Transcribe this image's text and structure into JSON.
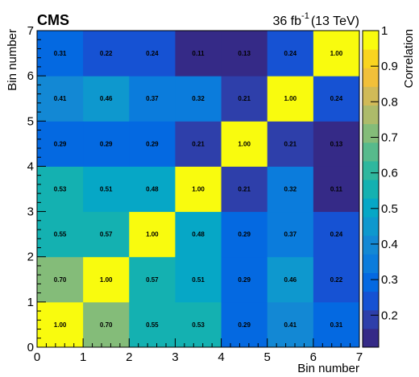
{
  "chart_data": {
    "type": "heatmap",
    "experiment_label": "CMS",
    "luminosity_label": "36 fb",
    "luminosity_exponent": "-1",
    "energy_label": "(13 TeV)",
    "xlabel": "Bin number",
    "ylabel": "Bin number",
    "colorbar_label": "Correlation",
    "x_ticks": [
      "0",
      "1",
      "2",
      "3",
      "4",
      "5",
      "6",
      "7"
    ],
    "y_ticks": [
      "0",
      "1",
      "2",
      "3",
      "4",
      "5",
      "6",
      "7"
    ],
    "xlim": [
      0,
      7
    ],
    "ylim": [
      0,
      7
    ],
    "zlim": [
      0.11,
      1.0
    ],
    "colorbar_ticks": [
      "0.2",
      "0.3",
      "0.4",
      "0.5",
      "0.6",
      "0.7",
      "0.8",
      "0.9",
      "1"
    ],
    "colorbar_tick_values": [
      0.2,
      0.3,
      0.4,
      0.5,
      0.6,
      0.7,
      0.8,
      0.9,
      1.0
    ],
    "cells": [
      [
        "1.00",
        "0.70",
        "0.55",
        "0.53",
        "0.29",
        "0.41",
        "0.31"
      ],
      [
        "0.70",
        "1.00",
        "0.57",
        "0.51",
        "0.29",
        "0.46",
        "0.22"
      ],
      [
        "0.55",
        "0.57",
        "1.00",
        "0.48",
        "0.29",
        "0.37",
        "0.24"
      ],
      [
        "0.53",
        "0.51",
        "0.48",
        "1.00",
        "0.21",
        "0.32",
        "0.11"
      ],
      [
        "0.29",
        "0.29",
        "0.29",
        "0.21",
        "1.00",
        "0.21",
        "0.13"
      ],
      [
        "0.41",
        "0.46",
        "0.37",
        "0.32",
        "0.21",
        "1.00",
        "0.24"
      ],
      [
        "0.31",
        "0.22",
        "0.24",
        "0.11",
        "0.13",
        "0.24",
        "1.00"
      ]
    ],
    "palette": [
      "#352A87",
      "#2E3FAA",
      "#1652D3",
      "#0469E1",
      "#0B7CDC",
      "#1388D4",
      "#0E98CE",
      "#06A7C6",
      "#14B1B1",
      "#2FB79E",
      "#57BA8C",
      "#84BC79",
      "#ADBB6A",
      "#D0BA58",
      "#F1C03A",
      "#F9D420",
      "#F9FB0E"
    ],
    "grid": false
  }
}
